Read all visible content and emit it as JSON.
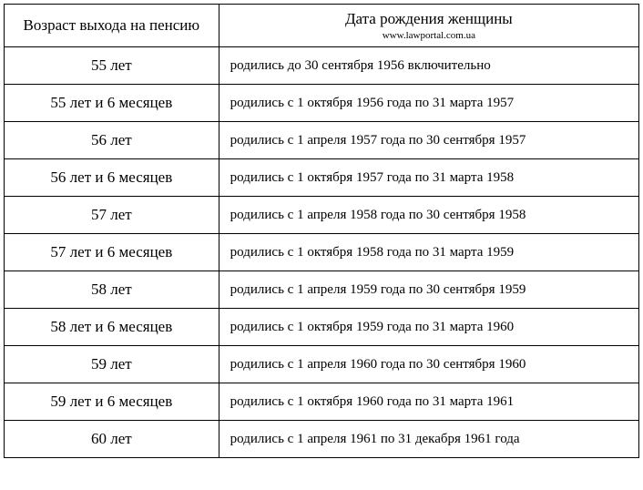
{
  "table": {
    "header": {
      "age_column": "Возраст выхода на пенсию",
      "date_column": "Дата рождения женщины",
      "source": "www.lawportal.com.ua"
    },
    "rows": [
      {
        "age": "55 лет",
        "date": "родились до 30 сентября 1956 включительно"
      },
      {
        "age": "55 лет и 6 месяцев",
        "date": "родились с 1 октября 1956 года по 31 марта 1957"
      },
      {
        "age": "56 лет",
        "date": "родились с 1 апреля 1957 года по 30 сентября 1957"
      },
      {
        "age": "56 лет и 6 месяцев",
        "date": "родились с 1 октября 1957 года по 31 марта 1958"
      },
      {
        "age": "57 лет",
        "date": "родились с 1 апреля 1958 года по 30 сентября 1958"
      },
      {
        "age": "57 лет и 6 месяцев",
        "date": "родились с 1 октября 1958 года по 31 марта 1959"
      },
      {
        "age": "58 лет",
        "date": "родились с 1 апреля 1959 года по 30 сентября 1959"
      },
      {
        "age": "58 лет и 6 месяцев",
        "date": "родились с 1 октября 1959 года по 31 марта 1960"
      },
      {
        "age": "59 лет",
        "date": "родились с 1 апреля 1960 года по 30 сентября 1960"
      },
      {
        "age": "59 лет и 6 месяцев",
        "date": "родились с 1 октября 1960 года по 31 марта 1961"
      },
      {
        "age": "60 лет",
        "date": "родились с 1 апреля 1961 по 31 декабря 1961 года"
      }
    ],
    "columns_width": {
      "age": 236,
      "date": 462
    },
    "font_family": "Georgia, Times New Roman, serif",
    "header_fontsize": 17,
    "cell_fontsize_age": 17,
    "cell_fontsize_date": 15,
    "subheader_fontsize": 11,
    "border_color": "#000000",
    "background_color": "#ffffff",
    "text_color": "#000000"
  }
}
